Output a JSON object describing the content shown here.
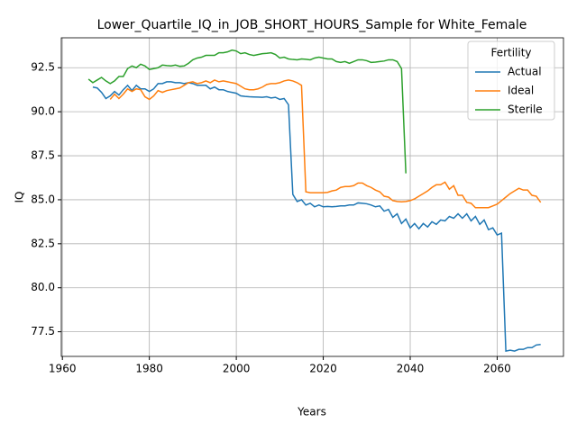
{
  "chart_data": {
    "type": "line",
    "title": "Lower_Quartile_IQ_in_JOB_SHORT_HOURS_Sample for White_Female",
    "xlabel": "Years",
    "ylabel": "IQ",
    "x": [
      1966,
      1967,
      1968,
      1969,
      1970,
      1971,
      1972,
      1973,
      1974,
      1975,
      1976,
      1977,
      1978,
      1979,
      1980,
      1981,
      1982,
      1983,
      1984,
      1985,
      1986,
      1987,
      1988,
      1989,
      1990,
      1991,
      1992,
      1993,
      1994,
      1995,
      1996,
      1997,
      1998,
      1999,
      2000,
      2001,
      2002,
      2003,
      2004,
      2005,
      2006,
      2007,
      2008,
      2009,
      2010,
      2011,
      2012,
      2013,
      2014,
      2015,
      2016,
      2017,
      2018,
      2019,
      2020,
      2021,
      2022,
      2023,
      2024,
      2025,
      2026,
      2027,
      2028,
      2029,
      2030,
      2031,
      2032,
      2033,
      2034,
      2035,
      2036,
      2037,
      2038,
      2039,
      2040,
      2041,
      2042,
      2043,
      2044,
      2045,
      2046,
      2047,
      2048,
      2049,
      2050,
      2051,
      2052,
      2053,
      2054,
      2055,
      2056,
      2057,
      2058,
      2059,
      2060,
      2061,
      2062,
      2063,
      2064,
      2065,
      2066,
      2067,
      2068,
      2069,
      2070
    ],
    "series": [
      {
        "name": "Actual",
        "color": "#1f77b4",
        "values": [
          null,
          91.4,
          91.35,
          91.1,
          90.75,
          90.9,
          91.15,
          90.95,
          91.25,
          91.5,
          91.2,
          91.5,
          91.3,
          91.3,
          91.15,
          91.3,
          91.6,
          91.6,
          91.7,
          91.7,
          91.65,
          91.65,
          91.6,
          91.65,
          91.6,
          91.5,
          91.5,
          91.5,
          91.3,
          91.4,
          91.25,
          91.25,
          91.15,
          91.1,
          91.05,
          90.9,
          90.87,
          90.85,
          90.84,
          90.83,
          90.82,
          90.85,
          90.78,
          90.82,
          90.7,
          90.75,
          90.4,
          85.3,
          84.9,
          85.0,
          84.7,
          84.8,
          84.6,
          84.7,
          84.6,
          84.62,
          84.6,
          84.62,
          84.65,
          84.65,
          84.7,
          84.7,
          84.82,
          84.8,
          84.77,
          84.7,
          84.6,
          84.65,
          84.35,
          84.45,
          84.0,
          84.2,
          83.65,
          83.9,
          83.4,
          83.65,
          83.35,
          83.65,
          83.45,
          83.75,
          83.6,
          83.85,
          83.8,
          84.05,
          83.95,
          84.2,
          83.95,
          84.2,
          83.8,
          84.05,
          83.6,
          83.85,
          83.3,
          83.4,
          83.0,
          83.1,
          76.4,
          76.45,
          76.4,
          76.5,
          76.5,
          76.6,
          76.6,
          76.75,
          76.78
        ]
      },
      {
        "name": "Ideal",
        "color": "#ff7f0e",
        "values": [
          null,
          null,
          null,
          null,
          null,
          90.7,
          91.0,
          90.75,
          91.0,
          91.3,
          91.15,
          91.3,
          91.25,
          90.85,
          90.7,
          90.9,
          91.2,
          91.1,
          91.2,
          91.25,
          91.3,
          91.35,
          91.5,
          91.65,
          91.7,
          91.6,
          91.65,
          91.75,
          91.65,
          91.8,
          91.7,
          91.75,
          91.7,
          91.65,
          91.6,
          91.45,
          91.3,
          91.25,
          91.25,
          91.3,
          91.4,
          91.55,
          91.6,
          91.6,
          91.65,
          91.75,
          91.8,
          91.75,
          91.65,
          91.5,
          85.45,
          85.4,
          85.4,
          85.4,
          85.4,
          85.42,
          85.5,
          85.55,
          85.7,
          85.75,
          85.75,
          85.8,
          85.95,
          85.95,
          85.8,
          85.7,
          85.55,
          85.45,
          85.2,
          85.15,
          84.95,
          84.9,
          84.88,
          84.9,
          84.95,
          85.05,
          85.2,
          85.35,
          85.5,
          85.7,
          85.85,
          85.85,
          86.0,
          85.6,
          85.8,
          85.25,
          85.25,
          84.85,
          84.8,
          84.55,
          84.55,
          84.55,
          84.55,
          84.65,
          84.75,
          84.95,
          85.15,
          85.35,
          85.5,
          85.65,
          85.55,
          85.55,
          85.25,
          85.2,
          84.85
        ]
      },
      {
        "name": "Sterile",
        "color": "#2ca02c",
        "values": [
          91.85,
          91.65,
          91.8,
          91.95,
          91.75,
          91.6,
          91.75,
          92.0,
          92.0,
          92.45,
          92.6,
          92.5,
          92.7,
          92.6,
          92.4,
          92.45,
          92.5,
          92.65,
          92.62,
          92.6,
          92.65,
          92.58,
          92.6,
          92.75,
          92.95,
          93.05,
          93.1,
          93.2,
          93.2,
          93.2,
          93.35,
          93.35,
          93.4,
          93.5,
          93.45,
          93.3,
          93.35,
          93.25,
          93.2,
          93.25,
          93.3,
          93.32,
          93.35,
          93.25,
          93.05,
          93.1,
          93.0,
          92.97,
          92.95,
          93.0,
          92.98,
          92.95,
          93.05,
          93.1,
          93.05,
          93.0,
          93.0,
          92.85,
          92.8,
          92.85,
          92.75,
          92.85,
          92.95,
          92.95,
          92.9,
          92.8,
          92.82,
          92.85,
          92.88,
          92.95,
          92.95,
          92.85,
          92.45,
          86.5,
          null,
          null,
          null,
          null,
          null,
          null,
          null,
          null,
          null,
          null,
          null,
          null,
          null,
          null,
          null,
          null,
          null,
          null,
          null,
          null,
          null,
          null,
          null,
          null,
          null,
          null,
          null,
          null,
          null,
          null,
          null
        ]
      }
    ],
    "xlim": [
      1959.75,
      2075.25
    ],
    "xticks": [
      1960,
      1980,
      2000,
      2020,
      2040,
      2060
    ],
    "ylim": [
      76.1,
      94.2
    ],
    "yticks": [
      77.5,
      {
        "value": 80,
        "label": "80.0"
      },
      82.5,
      {
        "value": 85,
        "label": "85.0"
      },
      87.5,
      {
        "value": 90,
        "label": "90.0"
      },
      92.5
    ],
    "grid": true,
    "legend_title": "Fertility",
    "legend_loc": "upper right"
  }
}
